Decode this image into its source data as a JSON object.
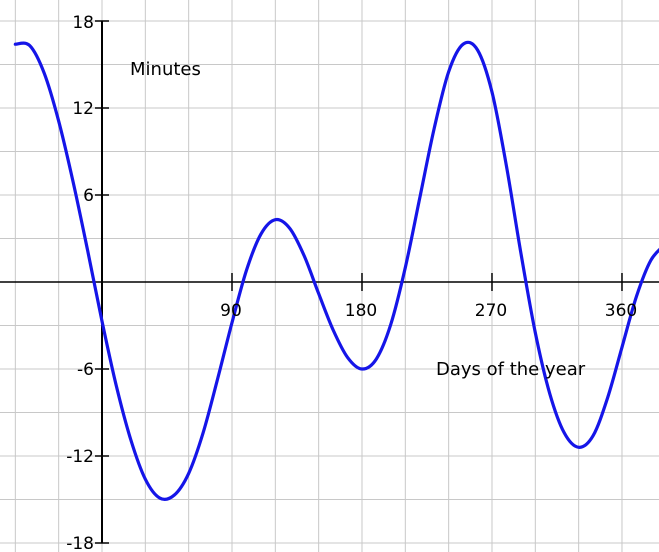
{
  "chart_data": {
    "type": "line",
    "xlabel": "Days of the year",
    "ylabel": "Minutes",
    "xlim": [
      -60,
      390
    ],
    "ylim": [
      -18,
      18
    ],
    "x_ticks": [
      "90",
      "180",
      "270",
      "360"
    ],
    "x_tick_values": [
      90,
      180,
      270,
      360
    ],
    "y_ticks": [
      "18",
      "12",
      "6",
      "-6",
      "-12",
      "-18"
    ],
    "y_tick_values": [
      18,
      12,
      6,
      -6,
      -12,
      -18
    ],
    "grid": true,
    "series": [
      {
        "color": "#1515e8",
        "x": [
          -60,
          -50,
          -40,
          -30,
          -20,
          -10,
          0,
          10,
          20,
          30,
          40,
          50,
          60,
          70,
          80,
          90,
          100,
          110,
          120,
          130,
          140,
          150,
          160,
          170,
          180,
          190,
          200,
          210,
          220,
          230,
          240,
          250,
          260,
          270,
          280,
          290,
          300,
          310,
          320,
          330,
          340,
          350,
          360,
          370,
          380,
          390
        ],
        "y": [
          16.4,
          16.3,
          14.4,
          11.1,
          6.9,
          2.2,
          -2.7,
          -7.2,
          -10.9,
          -13.6,
          -14.9,
          -14.7,
          -13.2,
          -10.4,
          -6.7,
          -2.8,
          0.8,
          3.3,
          4.3,
          3.7,
          1.8,
          -0.8,
          -3.3,
          -5.2,
          -6.0,
          -5.3,
          -2.9,
          1.0,
          5.8,
          10.6,
          14.5,
          16.4,
          16.0,
          13.1,
          8.0,
          2.0,
          -3.5,
          -7.7,
          -10.4,
          -11.4,
          -10.6,
          -8.0,
          -4.5,
          -1.0,
          1.5,
          2.6
        ]
      }
    ]
  }
}
